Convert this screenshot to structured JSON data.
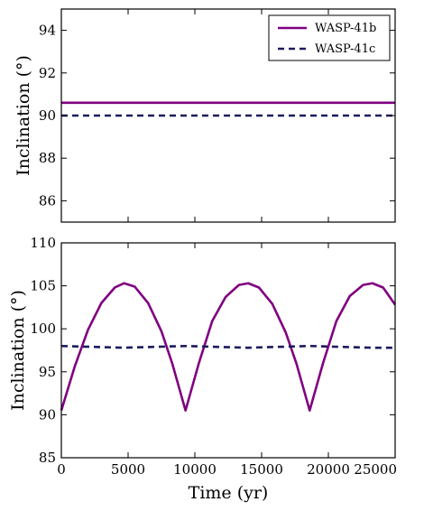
{
  "colors": {
    "wasp41b": "#800080",
    "wasp41c": "#1c1a5e"
  },
  "chart_data": [
    {
      "type": "line",
      "title": "",
      "xlabel": "",
      "ylabel": "Inclination (°)",
      "xlim": [
        0,
        25000
      ],
      "ylim": [
        85,
        95
      ],
      "yticks": [
        86,
        88,
        90,
        92,
        94
      ],
      "legend": "top-right",
      "grid": false,
      "series": [
        {
          "name": "WASP-41b",
          "style": "solid",
          "color": "#800080",
          "x": [
            0,
            25000
          ],
          "y": [
            90.6,
            90.6
          ]
        },
        {
          "name": "WASP-41c",
          "style": "dashed",
          "color": "#1c1a5e",
          "x": [
            0,
            25000
          ],
          "y": [
            90.0,
            90.0
          ]
        }
      ]
    },
    {
      "type": "line",
      "title": "",
      "xlabel": "Time (yr)",
      "ylabel": "Inclination (°)",
      "xlim": [
        0,
        25000
      ],
      "ylim": [
        85,
        110
      ],
      "xticks": [
        0,
        5000,
        10000,
        15000,
        20000,
        25000
      ],
      "yticks": [
        85,
        90,
        95,
        100,
        105,
        110
      ],
      "grid": false,
      "series": [
        {
          "name": "WASP-41b",
          "style": "solid",
          "color": "#800080",
          "x": [
            0,
            1000,
            2000,
            3000,
            4000,
            4700,
            5500,
            6500,
            7500,
            8300,
            8900,
            9300,
            9700,
            10300,
            11300,
            12300,
            13300,
            14000,
            14800,
            15800,
            16800,
            17600,
            18200,
            18600,
            19000,
            19600,
            20600,
            21600,
            22600,
            23300,
            24100,
            25000
          ],
          "y": [
            90.5,
            95.6,
            99.9,
            103.0,
            104.8,
            105.3,
            104.9,
            103.0,
            99.7,
            96.0,
            92.7,
            90.5,
            92.7,
            96.0,
            100.9,
            103.7,
            105.1,
            105.3,
            104.8,
            102.9,
            99.6,
            96.0,
            92.7,
            90.5,
            92.7,
            96.0,
            100.9,
            103.8,
            105.1,
            105.3,
            104.8,
            102.8
          ]
        },
        {
          "name": "WASP-41c",
          "style": "dashed",
          "color": "#1c1a5e",
          "x": [
            0,
            4650,
            9300,
            13950,
            18600,
            23250,
            25000
          ],
          "y": [
            98.0,
            97.8,
            98.0,
            97.8,
            98.0,
            97.8,
            97.8
          ]
        }
      ]
    }
  ]
}
